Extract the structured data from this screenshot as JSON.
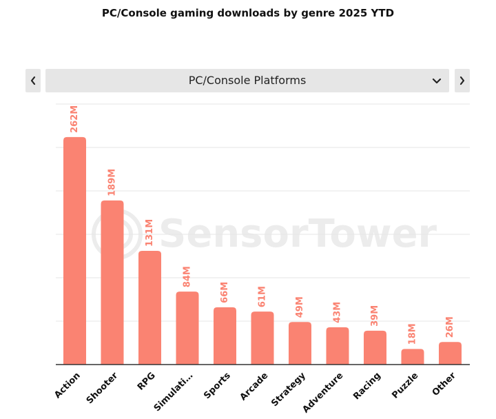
{
  "title": "PC/Console gaming downloads by genre 2025 YTD",
  "selector": {
    "selected": "PC/Console Platforms",
    "prev_icon": "chevron-left-icon",
    "next_icon": "chevron-right-icon",
    "dropdown_icon": "chevron-down-icon"
  },
  "watermark": "SensorTower",
  "colors": {
    "bar": "#fa8372",
    "label": "#fa8372",
    "grid": "#e6e6e6",
    "axis": "#333333"
  },
  "chart_data": {
    "type": "bar",
    "title": "PC/Console gaming downloads by genre 2025 YTD",
    "xlabel": "",
    "ylabel": "",
    "categories": [
      "Action",
      "Shooter",
      "RPG",
      "Simulati…",
      "Sports",
      "Arcade",
      "Strategy",
      "Adventure",
      "Racing",
      "Puzzle",
      "Other"
    ],
    "values": [
      262,
      189,
      131,
      84,
      66,
      61,
      49,
      43,
      39,
      18,
      26
    ],
    "data_labels": [
      "262M",
      "189M",
      "131M",
      "84M",
      "66M",
      "61M",
      "49M",
      "43M",
      "39M",
      "18M",
      "26M"
    ],
    "unit": "M",
    "ylim": [
      0,
      300
    ],
    "grid": true,
    "legend": "none"
  }
}
